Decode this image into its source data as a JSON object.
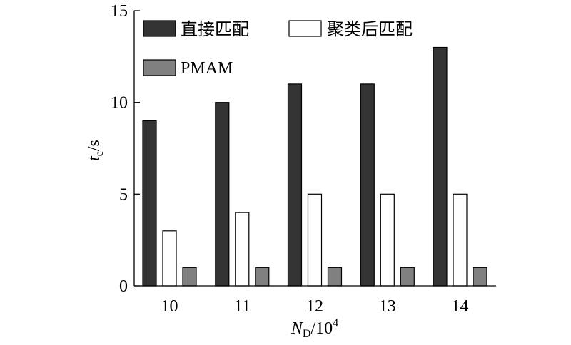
{
  "chart_data": {
    "type": "bar",
    "categories": [
      "10",
      "11",
      "12",
      "13",
      "14"
    ],
    "series": [
      {
        "name": "直接匹配",
        "values": [
          9,
          10,
          11,
          11,
          13
        ],
        "color": "#333333"
      },
      {
        "name": "聚类后匹配",
        "values": [
          3,
          4,
          5,
          5,
          5
        ],
        "color": "#ffffff"
      },
      {
        "name": "PMAM",
        "values": [
          1,
          1,
          1,
          1,
          1
        ],
        "color": "#808080"
      }
    ],
    "xlabel": {
      "var": "N",
      "sub": "D",
      "unit": "/10",
      "sup": "4"
    },
    "ylabel": {
      "var": "t",
      "sub": "c",
      "unit": "/s"
    },
    "ylim": [
      0,
      15
    ],
    "yticks": [
      0,
      5,
      10,
      15
    ],
    "grid": false,
    "legend": "top-left"
  }
}
